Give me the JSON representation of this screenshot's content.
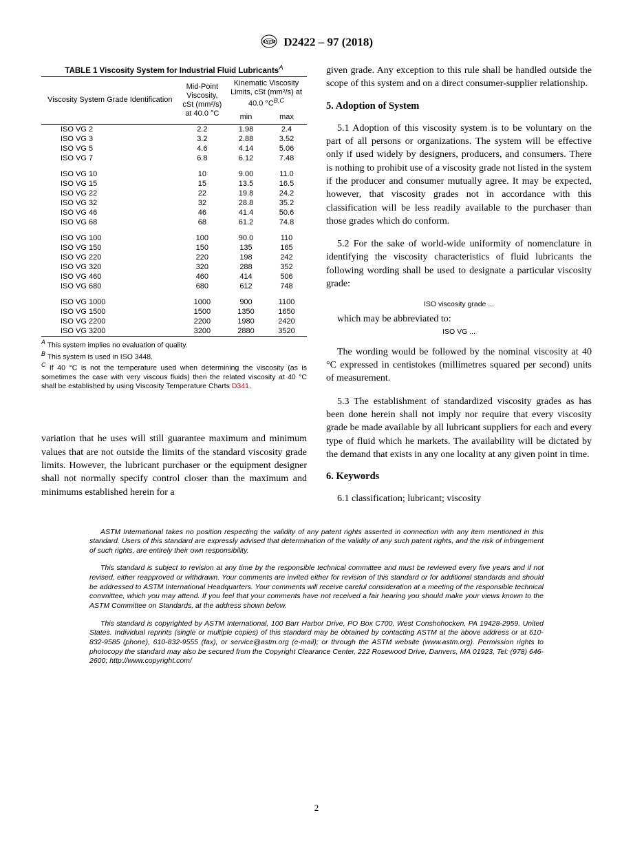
{
  "header": {
    "designation": "D2422 – 97 (2018)"
  },
  "table": {
    "title": "TABLE 1 Viscosity System for Industrial Fluid Lubricants",
    "title_sup": "A",
    "head_grade": "Viscosity System Grade Identification",
    "head_midpoint_l1": "Mid-Point",
    "head_midpoint_l2": "Viscosity,",
    "head_midpoint_l3": "cSt (mm²/s)",
    "head_midpoint_l4": "at 40.0 °C",
    "head_limits_l1": "Kinematic Viscosity",
    "head_limits_l2": "Limits, cSt (mm²/s) at",
    "head_limits_l3": "40.0 °C",
    "head_limits_sup": "B,C",
    "head_min": "min",
    "head_max": "max",
    "groups": [
      [
        {
          "grade": "ISO VG 2",
          "mid": "2.2",
          "min": "1.98",
          "max": "2.4"
        },
        {
          "grade": "ISO VG 3",
          "mid": "3.2",
          "min": "2.88",
          "max": "3.52"
        },
        {
          "grade": "ISO VG 5",
          "mid": "4.6",
          "min": "4.14",
          "max": "5.06"
        },
        {
          "grade": "ISO VG 7",
          "mid": "6.8",
          "min": "6.12",
          "max": "7.48"
        }
      ],
      [
        {
          "grade": "ISO VG 10",
          "mid": "10",
          "min": "9.00",
          "max": "11.0"
        },
        {
          "grade": "ISO VG 15",
          "mid": "15",
          "min": "13.5",
          "max": "16.5"
        },
        {
          "grade": "ISO VG 22",
          "mid": "22",
          "min": "19.8",
          "max": "24.2"
        },
        {
          "grade": "ISO VG 32",
          "mid": "32",
          "min": "28.8",
          "max": "35.2"
        },
        {
          "grade": "ISO VG 46",
          "mid": "46",
          "min": "41.4",
          "max": "50.6"
        },
        {
          "grade": "ISO VG 68",
          "mid": "68",
          "min": "61.2",
          "max": "74.8"
        }
      ],
      [
        {
          "grade": "ISO VG 100",
          "mid": "100",
          "min": "90.0",
          "max": "110"
        },
        {
          "grade": "ISO VG 150",
          "mid": "150",
          "min": "135",
          "max": "165"
        },
        {
          "grade": "ISO VG 220",
          "mid": "220",
          "min": "198",
          "max": "242"
        },
        {
          "grade": "ISO VG 320",
          "mid": "320",
          "min": "288",
          "max": "352"
        },
        {
          "grade": "ISO VG 460",
          "mid": "460",
          "min": "414",
          "max": "506"
        },
        {
          "grade": "ISO VG 680",
          "mid": "680",
          "min": "612",
          "max": "748"
        }
      ],
      [
        {
          "grade": "ISO VG 1000",
          "mid": "1000",
          "min": "900",
          "max": "1100"
        },
        {
          "grade": "ISO VG 1500",
          "mid": "1500",
          "min": "1350",
          "max": "1650"
        },
        {
          "grade": "ISO VG 2200",
          "mid": "2200",
          "min": "1980",
          "max": "2420"
        },
        {
          "grade": "ISO VG 3200",
          "mid": "3200",
          "min": "2880",
          "max": "3520"
        }
      ]
    ],
    "footnotes": {
      "a": " This system implies no evaluation of quality.",
      "b": " This system is used in ISO 3448.",
      "c_pre": " If 40 °C is not the temperature used when determining the viscosity (as is sometimes the case with very viscous fluids) then the related viscosity at 40 °C shall be established by using Viscosity Temperature Charts ",
      "c_link": "D341",
      "c_post": "."
    }
  },
  "left_para": "variation that he uses will still guarantee maximum and minimum values that are not outside the limits of the standard viscosity grade limits. However, the lubricant purchaser or the equipment designer shall not normally specify control closer than the maximum and minimums established herein for a",
  "right": {
    "para_top": "given grade. Any exception to this rule shall be handled outside the scope of this system and on a direct consumer-supplier relationship.",
    "sec5_title": "5.  Adoption of System",
    "p51": "5.1 Adoption of this viscosity system is to be voluntary on the part of all persons or organizations. The system will be effective only if used widely by designers, producers, and consumers. There is nothing to prohibit use of a viscosity grade not listed in the system if the producer and consumer mutually agree. It may be expected, however, that viscosity grades not in accordance with this classification will be less readily available to the purchaser than those grades which do conform.",
    "p52": "5.2 For the sake of world-wide uniformity of nomenclature in identifying the viscosity characteristics of fluid lubricants the following wording shall be used to designate a particular viscosity grade:",
    "iso_grade_label": "ISO viscosity grade ...",
    "p52_abbr": "which may be abbreviated to:",
    "iso_vg_label": "ISO VG ...",
    "p52_follow": "The wording would be followed by the nominal viscosity at 40 °C expressed in centistokes (millimetres squared per second) units of measurement.",
    "p53": "5.3 The establishment of standardized viscosity grades as has been done herein shall not imply nor require that every viscosity grade be made available by all lubricant suppliers for each and every type of fluid which he markets. The availability will be dictated by the demand that exists in any one locality at any given point in time.",
    "sec6_title": "6.  Keywords",
    "p61": "6.1 classification; lubricant; viscosity"
  },
  "boilerplate": {
    "p1": "ASTM International takes no position respecting the validity of any patent rights asserted in connection with any item mentioned in this standard. Users of this standard are expressly advised that determination of the validity of any such patent rights, and the risk of infringement of such rights, are entirely their own responsibility.",
    "p2": "This standard is subject to revision at any time by the responsible technical committee and must be reviewed every five years and if not revised, either reapproved or withdrawn. Your comments are invited either for revision of this standard or for additional standards and should be addressed to ASTM International Headquarters. Your comments will receive careful consideration at a meeting of the responsible technical committee, which you may attend. If you feel that your comments have not received a fair hearing you should make your views known to the ASTM Committee on Standards, at the address shown below.",
    "p3": "This standard is copyrighted by ASTM International, 100 Barr Harbor Drive, PO Box C700, West Conshohocken, PA 19428-2959, United States. Individual reprints (single or multiple copies) of this standard may be obtained by contacting ASTM at the above address or at 610-832-9585 (phone), 610-832-9555 (fax), or service@astm.org (e-mail); or through the ASTM website (www.astm.org). Permission rights to photocopy the standard may also be secured from the Copyright Clearance Center, 222 Rosewood Drive, Danvers, MA 01923, Tel: (978) 646-2600; http://www.copyright.com/"
  },
  "page_number": "2"
}
